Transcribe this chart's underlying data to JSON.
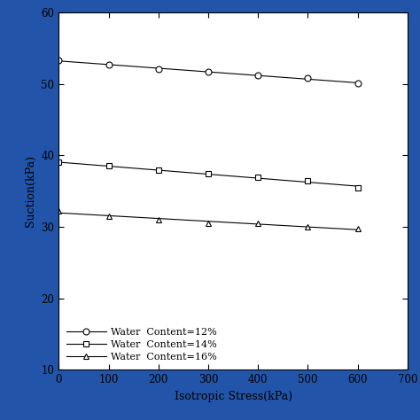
{
  "series": [
    {
      "label": "Water  Content=12%",
      "x": [
        0,
        100,
        200,
        300,
        400,
        500,
        600
      ],
      "y": [
        53.3,
        52.7,
        52.1,
        51.7,
        51.2,
        50.8,
        50.1
      ],
      "marker": "o",
      "color": "black"
    },
    {
      "label": "Water  Content=14%",
      "x": [
        0,
        100,
        200,
        300,
        400,
        500,
        600
      ],
      "y": [
        39.0,
        38.5,
        37.9,
        37.4,
        36.9,
        36.4,
        35.5
      ],
      "marker": "s",
      "color": "black"
    },
    {
      "label": "Water  Content=16%",
      "x": [
        0,
        100,
        200,
        300,
        400,
        500,
        600
      ],
      "y": [
        32.2,
        31.5,
        31.0,
        30.5,
        30.5,
        30.0,
        29.7
      ],
      "marker": "^",
      "color": "black"
    }
  ],
  "xlabel": "Isotropic Stress(kPa)",
  "ylabel": "Suction(kPa)",
  "xlim": [
    0,
    700
  ],
  "ylim": [
    10,
    60
  ],
  "xticks": [
    0,
    100,
    200,
    300,
    400,
    500,
    600,
    700
  ],
  "yticks": [
    10,
    20,
    30,
    40,
    50,
    60
  ],
  "figsize": [
    4.74,
    4.74
  ],
  "dpi": 100,
  "background_color": "#2255aa",
  "plot_background": "white"
}
